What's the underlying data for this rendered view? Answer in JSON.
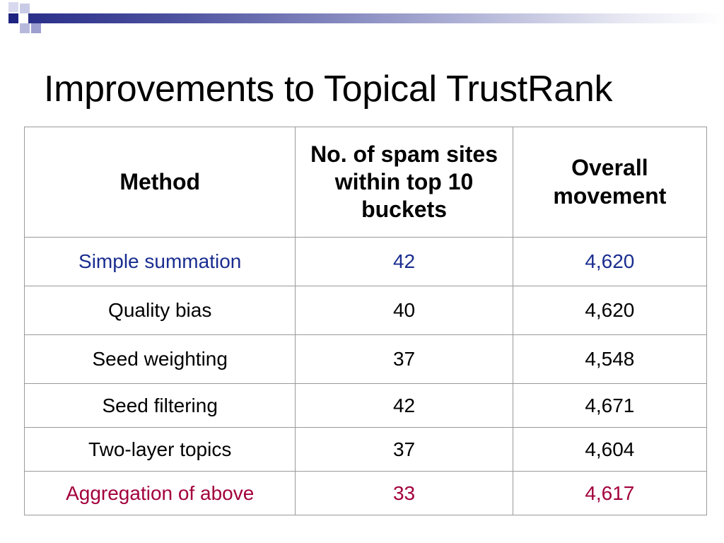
{
  "slide": {
    "title": "Improvements to Topical TrustRank"
  },
  "table": {
    "headers": {
      "method": "Method",
      "spam_sites": "No. of spam sites within top 10 buckets",
      "overall_movement": "Overall movement"
    },
    "rows": [
      {
        "method": "Simple summation",
        "spam_sites": "42",
        "overall_movement": "4,620",
        "highlight": "blue"
      },
      {
        "method": "Quality bias",
        "spam_sites": "40",
        "overall_movement": "4,620",
        "highlight": "none"
      },
      {
        "method": "Seed weighting",
        "spam_sites": "37",
        "overall_movement": "4,548",
        "highlight": "none"
      },
      {
        "method": "Seed filtering",
        "spam_sites": "42",
        "overall_movement": "4,671",
        "highlight": "none"
      },
      {
        "method": "Two-layer topics",
        "spam_sites": "37",
        "overall_movement": "4,604",
        "highlight": "none"
      },
      {
        "method": "Aggregation of above",
        "spam_sites": "33",
        "overall_movement": "4,617",
        "highlight": "red"
      }
    ]
  },
  "colors": {
    "highlight_blue": "#1a2d8f",
    "highlight_red": "#a3003c",
    "header_bar": "#2a2f8a"
  }
}
